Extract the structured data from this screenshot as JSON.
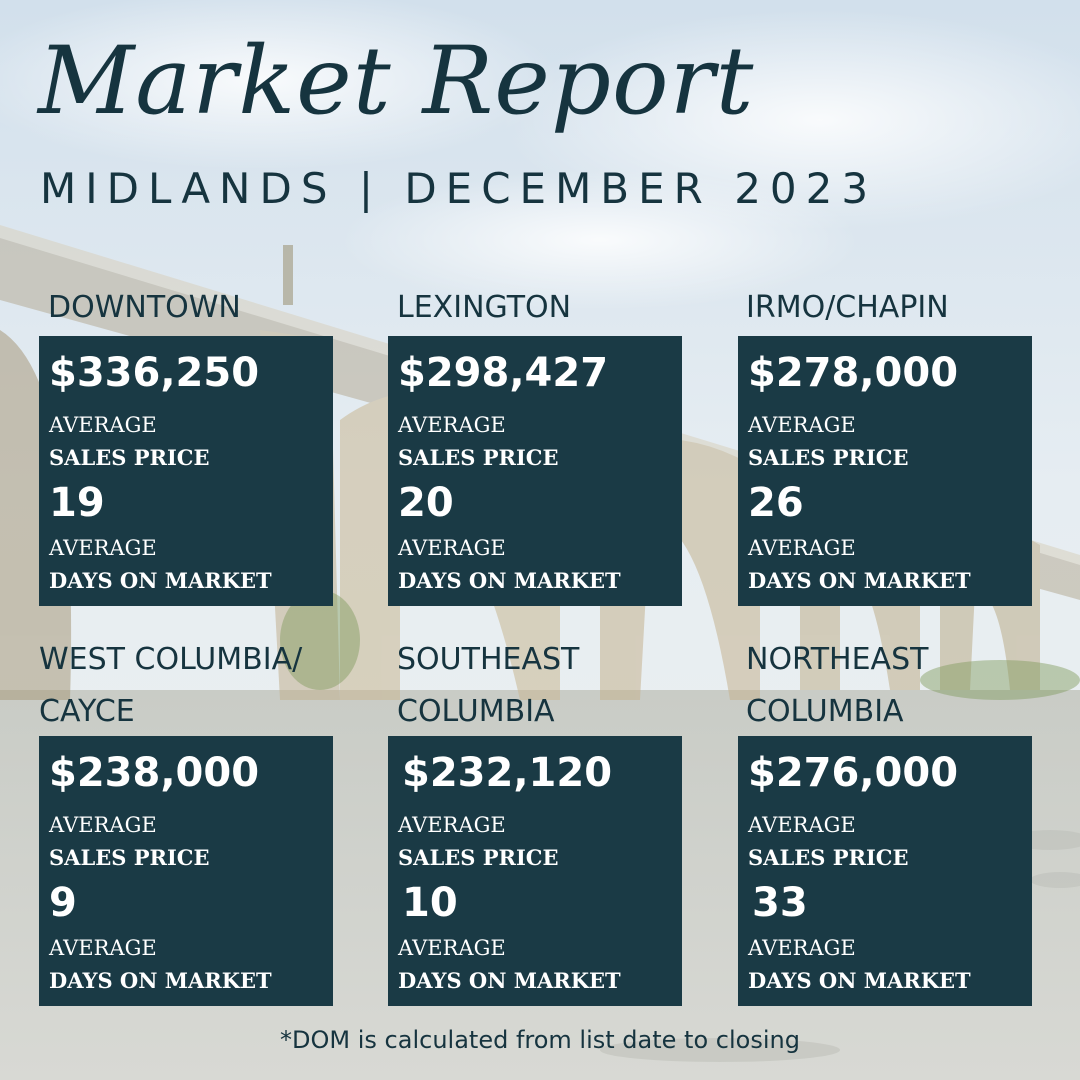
{
  "header": {
    "title": "Market Report",
    "subtitle": "MIDLANDS | DECEMBER 2023"
  },
  "regions": [
    {
      "name": "DOWNTOWN",
      "price": "$336,250",
      "price_label_1": "AVERAGE",
      "price_label_2": "SALES PRICE",
      "dom": "19",
      "dom_label_1": "AVERAGE",
      "dom_label_2": "DAYS ON MARKET"
    },
    {
      "name": "LEXINGTON",
      "price": "$298,427",
      "price_label_1": "AVERAGE",
      "price_label_2": "SALES PRICE",
      "dom": "20",
      "dom_label_1": "AVERAGE",
      "dom_label_2": "DAYS ON MARKET"
    },
    {
      "name": "IRMO/CHAPIN",
      "price": "$278,000",
      "price_label_1": "AVERAGE",
      "price_label_2": "SALES PRICE",
      "dom": "26",
      "dom_label_1": "AVERAGE",
      "dom_label_2": "DAYS ON MARKET"
    },
    {
      "name": "WEST COLUMBIA/\nCAYCE",
      "price": "$238,000",
      "price_label_1": "AVERAGE",
      "price_label_2": "SALES PRICE",
      "dom": "9",
      "dom_label_1": "AVERAGE",
      "dom_label_2": "DAYS ON MARKET"
    },
    {
      "name": "SOUTHEAST\nCOLUMBIA",
      "price": "$232,120",
      "price_label_1": "AVERAGE",
      "price_label_2": "SALES PRICE",
      "dom": "10",
      "dom_label_1": "AVERAGE",
      "dom_label_2": "DAYS ON MARKET"
    },
    {
      "name": "NORTHEAST\nCOLUMBIA",
      "price": "$276,000",
      "price_label_1": "AVERAGE",
      "price_label_2": "SALES PRICE",
      "dom": "33",
      "dom_label_1": "AVERAGE",
      "dom_label_2": "DAYS ON MARKET"
    }
  ],
  "footnote": "*DOM is calculated from list date to closing",
  "colors": {
    "card_background": "#1a3a45",
    "heading_text": "#16343f",
    "card_text": "#ffffff"
  }
}
